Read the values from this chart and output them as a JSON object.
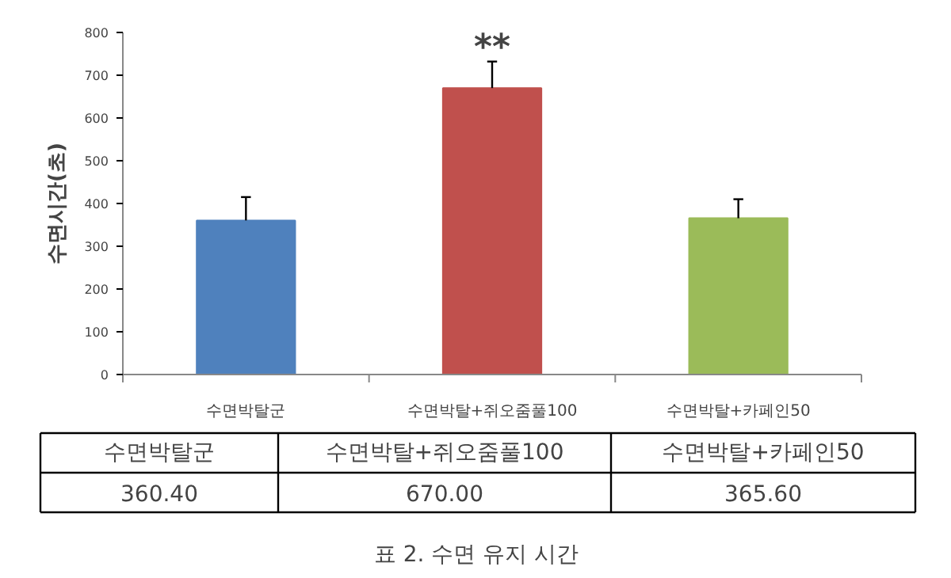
{
  "chart_data": {
    "type": "bar",
    "title": "표 2. 수면 유지 시간",
    "ylabel": "수면시간(초)",
    "categories": [
      "수면박탈군",
      "수면박탈+쥐오줌풀100",
      "수면박탈+카페인50"
    ],
    "values": [
      360.4,
      670.0,
      365.6
    ],
    "colors": [
      "#4f81bd",
      "#c0504d",
      "#9bbb59"
    ],
    "errors": [
      [
        360.4,
        415
      ],
      [
        670.0,
        732
      ],
      [
        365.6,
        410
      ]
    ],
    "value_labels": [
      "360.40",
      "670.00",
      "365.60"
    ],
    "ylim": [
      0,
      800
    ],
    "yticks": [
      0,
      100,
      200,
      300,
      400,
      500,
      600,
      700,
      800
    ],
    "grid": false,
    "legend": false,
    "annotations": [
      "**"
    ]
  }
}
